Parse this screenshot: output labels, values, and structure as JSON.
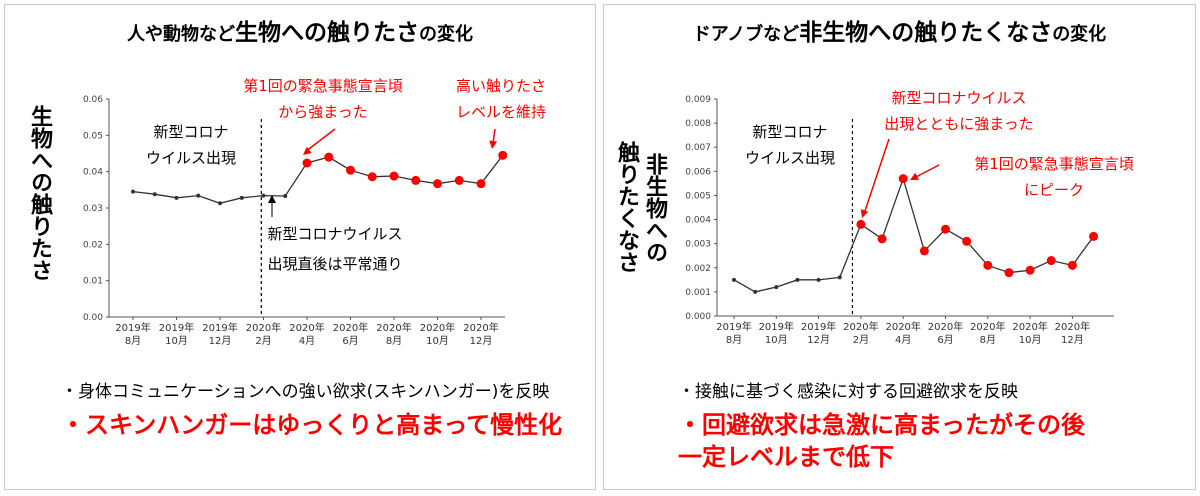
{
  "colors": {
    "line": "#333333",
    "marker_normal": "#333333",
    "marker_highlight": "#ff0000",
    "annotation_red": "#ff0000",
    "axis": "#555555"
  },
  "left": {
    "title_small_1": "人や動物など",
    "title_big": "生物への触りたさ",
    "title_small_2": "の変化",
    "ylabel": "生物への触りたさ",
    "ann_covid": [
      "新型コロナ",
      "ウイルス出現"
    ],
    "ann_after": [
      "新型コロナウイルス",
      "出現直後は平常通り"
    ],
    "ann_emergency": [
      "第1回の緊急事態宣言頃",
      "から強まった"
    ],
    "ann_high": [
      "高い触りたさ",
      "レベルを維持"
    ],
    "bullet_1": "・身体コミュニケーションへの強い欲求(スキンハンガー)を反映",
    "bullet_2": "・スキンハンガーはゆっくりと高まって慢性化"
  },
  "right": {
    "title_small_1": "ドアノブなど",
    "title_big": "非生物への触りたくなさ",
    "title_small_2": "の変化",
    "ylabel_col1": "非生物への",
    "ylabel_col2": "触りたくなさ",
    "ann_covid": [
      "新型コロナ",
      "ウイルス出現"
    ],
    "ann_strong": [
      "新型コロナウイルス",
      "出現とともに強まった"
    ],
    "ann_peak": [
      "第1回の緊急事態宣言頃",
      "にピーク"
    ],
    "bullet_1": "・接触に基づく感染に対する回避欲求を反映",
    "bullet_2": "・回避欲求は急激に高まったがその後",
    "bullet_3": "一定レベルまで低下"
  },
  "chart_data": [
    {
      "type": "line",
      "ylim": [
        0,
        0.06
      ],
      "yticks": [
        "0.00",
        "0.01",
        "0.02",
        "0.03",
        "0.04",
        "0.05",
        "0.06"
      ],
      "xticks": [
        [
          "2019年",
          "8月"
        ],
        [
          "2019年",
          "10月"
        ],
        [
          "2019年",
          "12月"
        ],
        [
          "2020年",
          "2月"
        ],
        [
          "2020年",
          "4月"
        ],
        [
          "2020年",
          "6月"
        ],
        [
          "2020年",
          "8月"
        ],
        [
          "2020年",
          "10月"
        ],
        [
          "2020年",
          "12月"
        ]
      ],
      "x": [
        0,
        0.5,
        1,
        1.5,
        2,
        2.5,
        3,
        3.5,
        4,
        4.5,
        5,
        5.5,
        6,
        6.5,
        7,
        7.5
      ],
      "values": [
        0.0345,
        0.0338,
        0.0328,
        0.0334,
        0.0313,
        0.0328,
        0.0334,
        0.0333,
        0.0424,
        0.044,
        0.0404,
        0.0386,
        0.0388,
        0.0376,
        0.0367,
        0.0376
      ],
      "extra": {
        "x": [
          8,
          8.5
        ],
        "values": [
          0.0367,
          0.0445
        ]
      },
      "highlight_from_index": 8,
      "event_line_x": 2.95
    },
    {
      "type": "line",
      "ylim": [
        0,
        0.009
      ],
      "yticks": [
        "0.000",
        "0.001",
        "0.002",
        "0.003",
        "0.004",
        "0.005",
        "0.006",
        "0.007",
        "0.008",
        "0.009"
      ],
      "xticks": [
        [
          "2019年",
          "8月"
        ],
        [
          "2019年",
          "10月"
        ],
        [
          "2019年",
          "12月"
        ],
        [
          "2020年",
          "2月"
        ],
        [
          "2020年",
          "4月"
        ],
        [
          "2020年",
          "6月"
        ],
        [
          "2020年",
          "8月"
        ],
        [
          "2020年",
          "10月"
        ],
        [
          "2020年",
          "12月"
        ]
      ],
      "x": [
        0,
        0.5,
        1,
        1.5,
        2,
        2.5,
        3,
        3.5,
        4,
        4.5,
        5,
        5.5,
        6,
        6.5,
        7,
        7.5,
        8,
        8.5
      ],
      "values": [
        0.0015,
        0.001,
        0.0012,
        0.0015,
        0.0015,
        0.0016,
        0.0038,
        0.0032,
        0.0057,
        0.0027,
        0.0036,
        0.0031,
        0.0021,
        0.0018,
        0.0019,
        0.0023,
        0.0021,
        0.0033
      ],
      "highlight_from_index": 6,
      "event_line_x": 2.8
    }
  ]
}
